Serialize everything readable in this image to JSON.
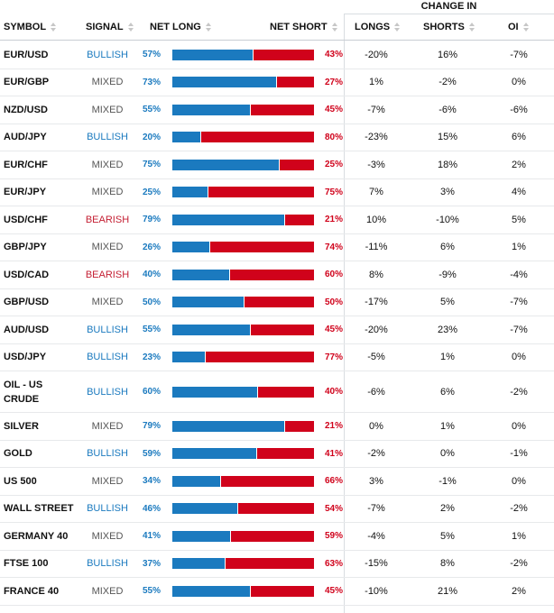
{
  "header": {
    "group_label": "CHANGE IN",
    "symbol": "SYMBOL",
    "signal": "SIGNAL",
    "net_long": "NET LONG",
    "net_short": "NET SHORT",
    "longs": "LONGS",
    "shorts": "SHORTS",
    "oi": "OI"
  },
  "colors": {
    "long": "#1b7abf",
    "short": "#d0021b",
    "mixed": "#555555"
  },
  "rows": [
    {
      "symbol": "EUR/USD",
      "signal": "BULLISH",
      "long": 57,
      "long_label": "57%",
      "short_label": "43%",
      "longs": "-20%",
      "shorts": "16%",
      "oi": "-7%"
    },
    {
      "symbol": "EUR/GBP",
      "signal": "MIXED",
      "long": 73,
      "long_label": "73%",
      "short_label": "27%",
      "longs": "1%",
      "shorts": "-2%",
      "oi": "0%"
    },
    {
      "symbol": "NZD/USD",
      "signal": "MIXED",
      "long": 55,
      "long_label": "55%",
      "short_label": "45%",
      "longs": "-7%",
      "shorts": "-6%",
      "oi": "-6%"
    },
    {
      "symbol": "AUD/JPY",
      "signal": "BULLISH",
      "long": 20,
      "long_label": "20%",
      "short_label": "80%",
      "longs": "-23%",
      "shorts": "15%",
      "oi": "6%"
    },
    {
      "symbol": "EUR/CHF",
      "signal": "MIXED",
      "long": 75,
      "long_label": "75%",
      "short_label": "25%",
      "longs": "-3%",
      "shorts": "18%",
      "oi": "2%"
    },
    {
      "symbol": "EUR/JPY",
      "signal": "MIXED",
      "long": 25,
      "long_label": "25%",
      "short_label": "75%",
      "longs": "7%",
      "shorts": "3%",
      "oi": "4%"
    },
    {
      "symbol": "USD/CHF",
      "signal": "BEARISH",
      "long": 79,
      "long_label": "79%",
      "short_label": "21%",
      "longs": "10%",
      "shorts": "-10%",
      "oi": "5%"
    },
    {
      "symbol": "GBP/JPY",
      "signal": "MIXED",
      "long": 26,
      "long_label": "26%",
      "short_label": "74%",
      "longs": "-11%",
      "shorts": "6%",
      "oi": "1%"
    },
    {
      "symbol": "USD/CAD",
      "signal": "BEARISH",
      "long": 40,
      "long_label": "40%",
      "short_label": "60%",
      "longs": "8%",
      "shorts": "-9%",
      "oi": "-4%"
    },
    {
      "symbol": "GBP/USD",
      "signal": "MIXED",
      "long": 50,
      "long_label": "50%",
      "short_label": "50%",
      "longs": "-17%",
      "shorts": "5%",
      "oi": "-7%"
    },
    {
      "symbol": "AUD/USD",
      "signal": "BULLISH",
      "long": 55,
      "long_label": "55%",
      "short_label": "45%",
      "longs": "-20%",
      "shorts": "23%",
      "oi": "-7%"
    },
    {
      "symbol": "USD/JPY",
      "signal": "BULLISH",
      "long": 23,
      "long_label": "23%",
      "short_label": "77%",
      "longs": "-5%",
      "shorts": "1%",
      "oi": "0%"
    },
    {
      "symbol": "OIL - US CRUDE",
      "signal": "BULLISH",
      "long": 60,
      "long_label": "60%",
      "short_label": "40%",
      "longs": "-6%",
      "shorts": "6%",
      "oi": "-2%"
    },
    {
      "symbol": "SILVER",
      "signal": "MIXED",
      "long": 79,
      "long_label": "79%",
      "short_label": "21%",
      "longs": "0%",
      "shorts": "1%",
      "oi": "0%"
    },
    {
      "symbol": "GOLD",
      "signal": "BULLISH",
      "long": 59,
      "long_label": "59%",
      "short_label": "41%",
      "longs": "-2%",
      "shorts": "0%",
      "oi": "-1%"
    },
    {
      "symbol": "US 500",
      "signal": "MIXED",
      "long": 34,
      "long_label": "34%",
      "short_label": "66%",
      "longs": "3%",
      "shorts": "-1%",
      "oi": "0%"
    },
    {
      "symbol": "WALL STREET",
      "signal": "BULLISH",
      "long": 46,
      "long_label": "46%",
      "short_label": "54%",
      "longs": "-7%",
      "shorts": "2%",
      "oi": "-2%"
    },
    {
      "symbol": "GERMANY 40",
      "signal": "MIXED",
      "long": 41,
      "long_label": "41%",
      "short_label": "59%",
      "longs": "-4%",
      "shorts": "5%",
      "oi": "1%"
    },
    {
      "symbol": "FTSE 100",
      "signal": "BULLISH",
      "long": 37,
      "long_label": "37%",
      "short_label": "63%",
      "longs": "-15%",
      "shorts": "8%",
      "oi": "-2%"
    },
    {
      "symbol": "FRANCE 40",
      "signal": "MIXED",
      "long": 55,
      "long_label": "55%",
      "short_label": "45%",
      "longs": "-10%",
      "shorts": "21%",
      "oi": "2%"
    }
  ]
}
